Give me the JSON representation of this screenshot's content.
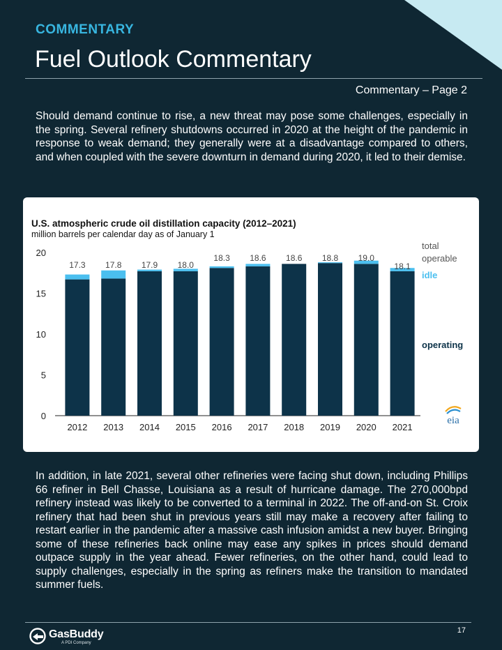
{
  "header": {
    "section": "COMMENTARY",
    "title": "Fuel Outlook Commentary",
    "page_ref": "Commentary – Page 2"
  },
  "paragraph_1": "Should demand continue to rise, a new threat may pose some challenges, especially in the spring. Several refinery shutdowns occurred in 2020 at the height of the pandemic in response to weak demand; they generally were at a disadvantage compared to others, and when coupled with the severe downturn in demand during 2020, it led to their demise.",
  "paragraph_2": "In addition, in late 2021, several other refineries were facing shut down, including Phillips 66 refiner in Bell Chasse, Louisiana as a result of hurricane damage. The 270,000bpd refinery instead was likely to be converted to a terminal in 2022. The off-and-on St. Croix refinery that had been shut in previous years still may make a recovery after failing to restart earlier in the pandemic after a massive cash infusion amidst a new buyer. Bringing some of these refineries back online may ease any spikes in prices should demand outpace supply in the year ahead. Fewer refineries, on the other hand, could lead to supply challenges, especially in the spring as refiners make the transition to mandated summer fuels.",
  "chart_data": {
    "type": "bar",
    "stacked": true,
    "title": "U.S. atmospheric crude oil distillation capacity (2012–2021)",
    "subtitle": "million barrels per calendar day as of January 1",
    "categories": [
      "2012",
      "2013",
      "2014",
      "2015",
      "2016",
      "2017",
      "2018",
      "2019",
      "2020",
      "2021"
    ],
    "series": [
      {
        "name": "operating",
        "color": "#0d3349",
        "values": [
          16.7,
          16.8,
          17.7,
          17.7,
          18.1,
          18.3,
          18.6,
          18.7,
          18.6,
          17.7
        ]
      },
      {
        "name": "idle",
        "color": "#4bbfef",
        "values": [
          0.6,
          1.0,
          0.2,
          0.3,
          0.2,
          0.3,
          0.0,
          0.1,
          0.4,
          0.4
        ]
      }
    ],
    "totals": [
      17.3,
      17.8,
      17.9,
      18.0,
      18.3,
      18.6,
      18.6,
      18.8,
      19.0,
      18.1
    ],
    "total_labels": [
      "17.3",
      "17.8",
      "17.9",
      "18.0",
      "18.3",
      "18.6",
      "18.6",
      "18.8",
      "19.0",
      "18.1"
    ],
    "legend": [
      "total",
      "operable",
      "idle",
      "operating"
    ],
    "yticks": [
      "0",
      "5",
      "10",
      "15",
      "20"
    ],
    "ylim": [
      0,
      20
    ],
    "grid": false,
    "source_logo": "eia",
    "colors": {
      "operating": "#0d3349",
      "idle": "#4bbfef",
      "legend_total": "#555555",
      "axis": "#222222"
    }
  },
  "footer": {
    "logo": "GasBuddy",
    "logo_sub": "A PDI Company",
    "page_number": "17"
  }
}
